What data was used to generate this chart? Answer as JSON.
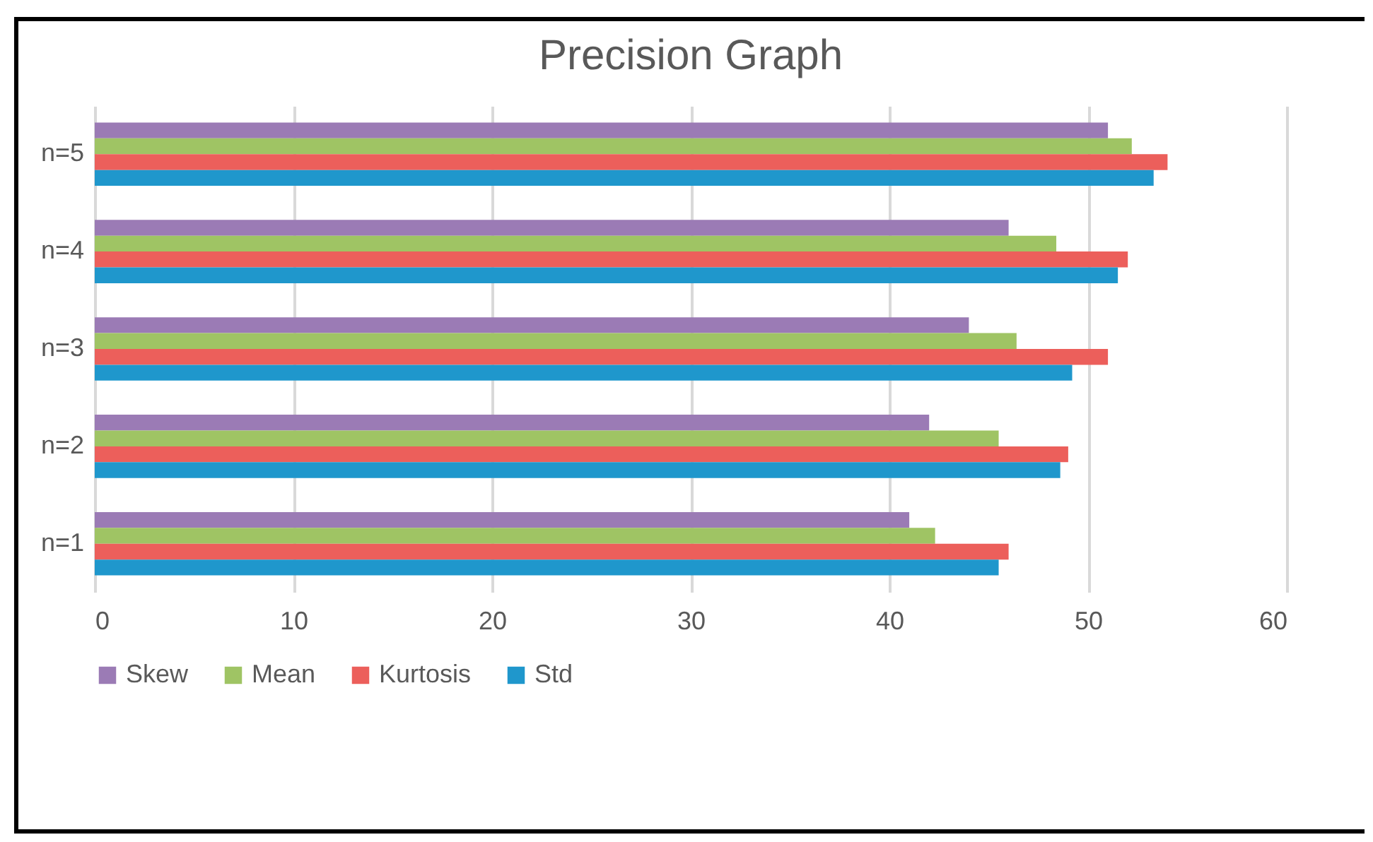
{
  "chart_data": {
    "type": "bar",
    "orientation": "horizontal",
    "title": "Precision Graph",
    "categories": [
      "n=5",
      "n=4",
      "n=3",
      "n=2",
      "n=1"
    ],
    "series": [
      {
        "name": "Skew",
        "color": "#9b7bb5",
        "values": [
          51.0,
          46.0,
          44.0,
          42.0,
          41.0
        ]
      },
      {
        "name": "Mean",
        "color": "#9fc464",
        "values": [
          52.2,
          48.4,
          46.4,
          45.5,
          42.3
        ]
      },
      {
        "name": "Kurtosis",
        "color": "#ec5f5b",
        "values": [
          54.0,
          52.0,
          51.0,
          49.0,
          46.0
        ]
      },
      {
        "name": "Std",
        "color": "#1f97cc",
        "values": [
          53.3,
          51.5,
          49.2,
          48.6,
          45.5
        ]
      }
    ],
    "xlim": [
      0,
      60
    ],
    "xticks": [
      0,
      10,
      20,
      30,
      40,
      50,
      60
    ],
    "grid": "x",
    "legend": "bottom"
  }
}
